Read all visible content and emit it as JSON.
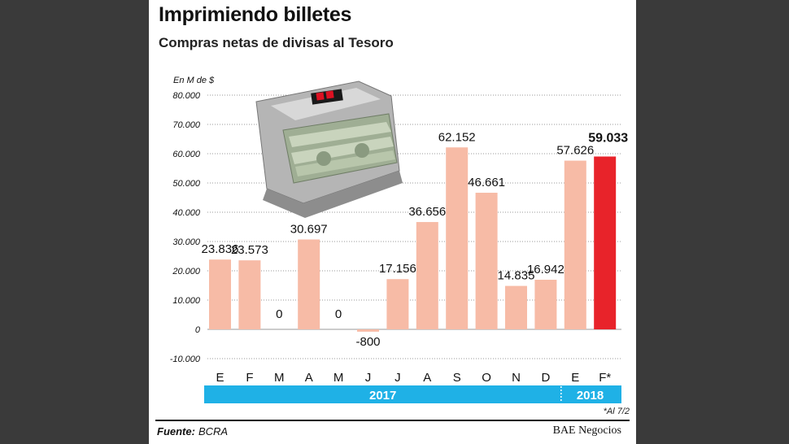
{
  "title": "Imprimiendo billetes",
  "subtitle": "Compras netas de divisas al Tesoro",
  "unit_label": "En M de $",
  "note": "*Al 7/2",
  "source": {
    "label": "Fuente:",
    "value": "BCRA"
  },
  "brand": "BAE Negocios",
  "chart_data": {
    "type": "bar",
    "categories": [
      "E",
      "F",
      "M",
      "A",
      "M",
      "J",
      "J",
      "A",
      "S",
      "O",
      "N",
      "D",
      "E",
      "F*"
    ],
    "values": [
      23836,
      23573,
      0,
      30697,
      0,
      -800,
      17156,
      36656,
      62152,
      46661,
      14835,
      16942,
      57626,
      59033
    ],
    "value_labels": [
      "23.836",
      "23.573",
      "0",
      "30.697",
      "0",
      "-800",
      "17.156",
      "36.656",
      "62.152",
      "46.661",
      "14.835",
      "16.942",
      "57.626",
      "59.033"
    ],
    "ylim": [
      -10000,
      80000
    ],
    "yticks": [
      80000,
      70000,
      60000,
      50000,
      40000,
      30000,
      20000,
      10000,
      0,
      -10000
    ],
    "ytick_labels": [
      "80.000",
      "70.000",
      "60.000",
      "50.000",
      "40.000",
      "30.000",
      "20.000",
      "10.000",
      "0",
      "-10.000"
    ],
    "highlight_index": 13,
    "years": [
      {
        "label": "2017",
        "from": 0,
        "to": 11
      },
      {
        "label": "2018",
        "from": 12,
        "to": 13
      }
    ],
    "grid": "horizontal-dotted",
    "colors": {
      "bar": "#f7bba6",
      "highlight": "#e8232a",
      "year_band": "#1fb1e6",
      "grid": "#9a9a9a"
    }
  }
}
